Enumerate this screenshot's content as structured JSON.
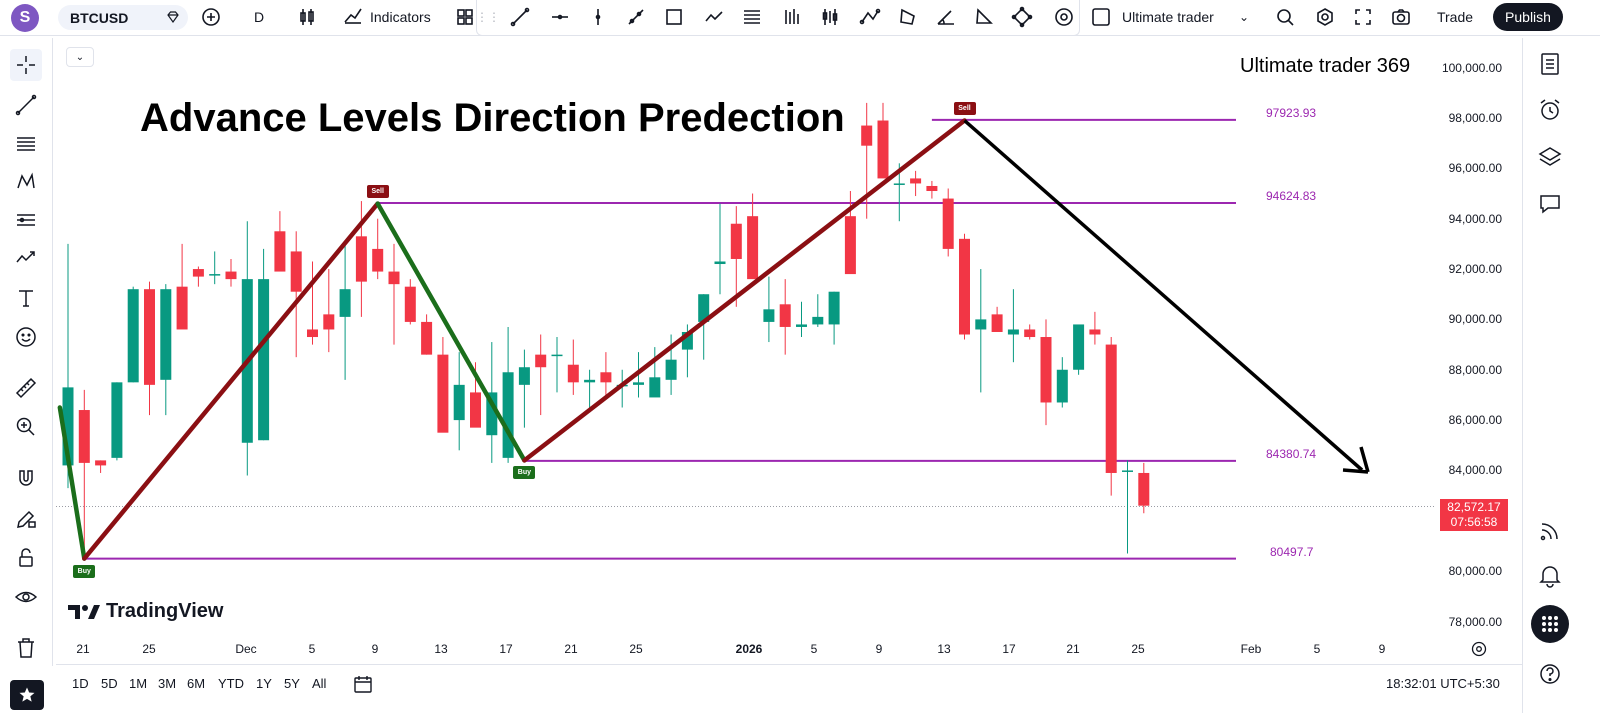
{
  "topbar": {
    "avatar_letter": "S",
    "symbol": "BTCUSD",
    "interval": "D",
    "indicators_label": "Indicators",
    "layout_name": "Ultimate trader",
    "trade_label": "Trade",
    "publish_label": "Publish"
  },
  "chart": {
    "title_overlay": "Advance Levels Direction Predection",
    "author_overlay": "Ultimate trader 369",
    "brand": "TradingView",
    "levels": [
      {
        "label": "97923.93",
        "price": 97923.93
      },
      {
        "label": "94624.83",
        "price": 94624.83
      },
      {
        "label": "84380.74",
        "price": 84380.74
      },
      {
        "label": "80497.7",
        "price": 80497.7
      }
    ],
    "signals": [
      {
        "type": "Buy",
        "label": "Buy"
      },
      {
        "type": "Sell",
        "label": "Sell"
      },
      {
        "type": "Buy",
        "label": "Buy"
      },
      {
        "type": "Sell",
        "label": "Sell"
      }
    ],
    "last_price": "82,572.17",
    "countdown": "07:56:58",
    "up_color": "#089981",
    "down_color": "#f23645",
    "level_color": "#9c27b0"
  },
  "price_axis": [
    "100,000.00",
    "98,000.00",
    "96,000.00",
    "94,000.00",
    "92,000.00",
    "90,000.00",
    "88,000.00",
    "86,000.00",
    "84,000.00",
    "82,000.00",
    "80,000.00",
    "78,000.00"
  ],
  "time_axis": [
    "21",
    "25",
    "Dec",
    "5",
    "9",
    "13",
    "17",
    "21",
    "25",
    "2026",
    "5",
    "9",
    "13",
    "17",
    "21",
    "25",
    "Feb",
    "5",
    "9"
  ],
  "ranges": [
    "1D",
    "5D",
    "1M",
    "3M",
    "6M",
    "YTD",
    "1Y",
    "5Y",
    "All"
  ],
  "clock": "18:32:01 UTC+5:30",
  "chart_data": {
    "type": "candlestick",
    "title": "Advance Levels Direction Predection",
    "symbol": "BTCUSD",
    "interval": "D",
    "ylim": [
      77500,
      100500
    ],
    "candles_ohlc": [
      [
        84200,
        93000,
        83300,
        87300
      ],
      [
        86400,
        87200,
        80500,
        84300
      ],
      [
        84400,
        84400,
        83900,
        84200
      ],
      [
        84500,
        87500,
        84400,
        87500
      ],
      [
        87500,
        91300,
        87500,
        91200
      ],
      [
        91200,
        91500,
        86200,
        87400
      ],
      [
        87600,
        91400,
        86200,
        91200
      ],
      [
        91300,
        93000,
        90300,
        89600
      ],
      [
        92000,
        92100,
        91300,
        91700
      ],
      [
        91800,
        92700,
        91400,
        91800
      ],
      [
        91900,
        92400,
        91300,
        91600
      ],
      [
        85100,
        93900,
        83800,
        91600
      ],
      [
        85200,
        92800,
        85200,
        91600
      ],
      [
        93500,
        94300,
        92600,
        91900
      ],
      [
        92700,
        93500,
        88500,
        91100
      ],
      [
        89600,
        92300,
        89000,
        89300
      ],
      [
        90200,
        92000,
        88700,
        89600
      ],
      [
        90100,
        93000,
        87600,
        91200
      ],
      [
        93300,
        94700,
        90100,
        91500
      ],
      [
        92800,
        94000,
        91600,
        91900
      ],
      [
        91900,
        93000,
        89000,
        91400
      ],
      [
        91300,
        91600,
        89800,
        89900
      ],
      [
        89900,
        90200,
        88600,
        88600
      ],
      [
        88600,
        89300,
        87300,
        85500
      ],
      [
        86000,
        88700,
        84800,
        87400
      ],
      [
        87100,
        88300,
        86000,
        85700
      ],
      [
        85400,
        89100,
        84300,
        87100
      ],
      [
        84500,
        89700,
        84300,
        87900
      ],
      [
        87400,
        88800,
        85700,
        88100
      ],
      [
        88600,
        89400,
        86200,
        88100
      ],
      [
        88600,
        89300,
        87100,
        88600
      ],
      [
        88200,
        89200,
        87000,
        87500
      ],
      [
        87500,
        88000,
        86300,
        87600
      ],
      [
        87900,
        88700,
        86900,
        87500
      ],
      [
        87400,
        88000,
        86500,
        87400
      ],
      [
        87400,
        88700,
        86900,
        87500
      ],
      [
        86900,
        88900,
        87000,
        87700
      ],
      [
        87600,
        89400,
        87000,
        88400
      ],
      [
        88800,
        89800,
        87700,
        89500
      ],
      [
        89900,
        91000,
        88400,
        91000
      ],
      [
        92200,
        94600,
        91000,
        92300
      ],
      [
        93800,
        94500,
        90500,
        92400
      ],
      [
        94100,
        95000,
        93600,
        91600
      ],
      [
        89900,
        91700,
        89100,
        90400
      ],
      [
        90600,
        91600,
        88600,
        89700
      ],
      [
        89700,
        90700,
        89300,
        89800
      ],
      [
        89800,
        91000,
        89700,
        90100
      ],
      [
        89800,
        91100,
        89000,
        91100
      ],
      [
        94100,
        95100,
        93600,
        91800
      ],
      [
        97700,
        98600,
        94000,
        96900
      ],
      [
        97900,
        98600,
        96700,
        95600
      ],
      [
        95400,
        96200,
        93900,
        95400
      ],
      [
        95600,
        95900,
        94900,
        95400
      ],
      [
        95300,
        95500,
        94800,
        95100
      ],
      [
        94800,
        95200,
        92500,
        92800
      ],
      [
        93200,
        93400,
        89200,
        89400
      ],
      [
        89600,
        92000,
        87100,
        90000
      ],
      [
        90200,
        90500,
        89600,
        89500
      ],
      [
        89400,
        91200,
        88300,
        89600
      ],
      [
        89600,
        89800,
        89200,
        89300
      ],
      [
        89300,
        90000,
        85800,
        86700
      ],
      [
        86700,
        88500,
        86500,
        88000
      ],
      [
        88000,
        89700,
        87800,
        89800
      ],
      [
        89600,
        90300,
        89000,
        89400
      ],
      [
        89000,
        89300,
        83000,
        83900
      ],
      [
        84000,
        84400,
        80700,
        84000
      ],
      [
        83900,
        84300,
        82300,
        82600
      ]
    ],
    "levels": [
      97923.93,
      94624.83,
      84380.74,
      80497.7
    ],
    "last_price": 82572.17
  }
}
